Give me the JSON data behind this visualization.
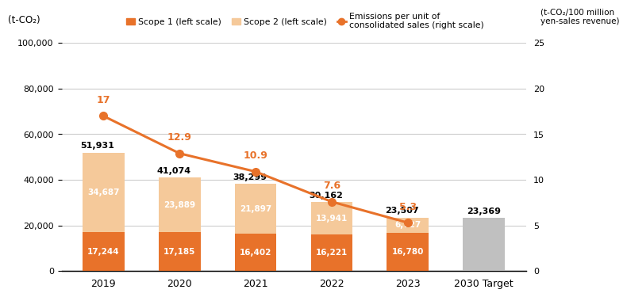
{
  "years": [
    "2019",
    "2020",
    "2021",
    "2022",
    "2023",
    "2030 Target"
  ],
  "scope1": [
    17244,
    17185,
    16402,
    16221,
    16780,
    0
  ],
  "scope2": [
    34687,
    23889,
    21897,
    13941,
    6727,
    0
  ],
  "target_bar": [
    0,
    0,
    0,
    0,
    0,
    23369
  ],
  "total_labels": [
    "51,931",
    "41,074",
    "38,299",
    "30,162",
    "23,507",
    "23,369"
  ],
  "scope1_labels": [
    "17,244",
    "17,185",
    "16,402",
    "16,221",
    "16,780",
    ""
  ],
  "scope2_labels": [
    "34,687",
    "23,889",
    "21,897",
    "13,941",
    "6,727",
    ""
  ],
  "line_values": [
    17.0,
    12.9,
    10.9,
    7.6,
    5.3
  ],
  "line_labels": [
    "17",
    "12.9",
    "10.9",
    "7.6",
    "5.3"
  ],
  "scope1_color": "#E8722A",
  "scope2_color": "#F5C99A",
  "target_color": "#C0C0C0",
  "line_color": "#E8722A",
  "left_ylabel": "(t-CO₂)",
  "right_ylabel": "(t-CO₂/100 million\nyen-sales revenue)",
  "ylim_left": [
    0,
    100000
  ],
  "ylim_right": [
    0,
    25
  ],
  "yticks_left": [
    0,
    20000,
    40000,
    60000,
    80000,
    100000
  ],
  "yticks_right": [
    0,
    5,
    10,
    15,
    20,
    25
  ],
  "legend_scope1": "Scope 1 (left scale)",
  "legend_scope2": "Scope 2 (left scale)",
  "legend_line": "Emissions per unit of\nconsolidated sales (right scale)",
  "bg_color": "#FFFFFF",
  "grid_color": "#CCCCCC"
}
